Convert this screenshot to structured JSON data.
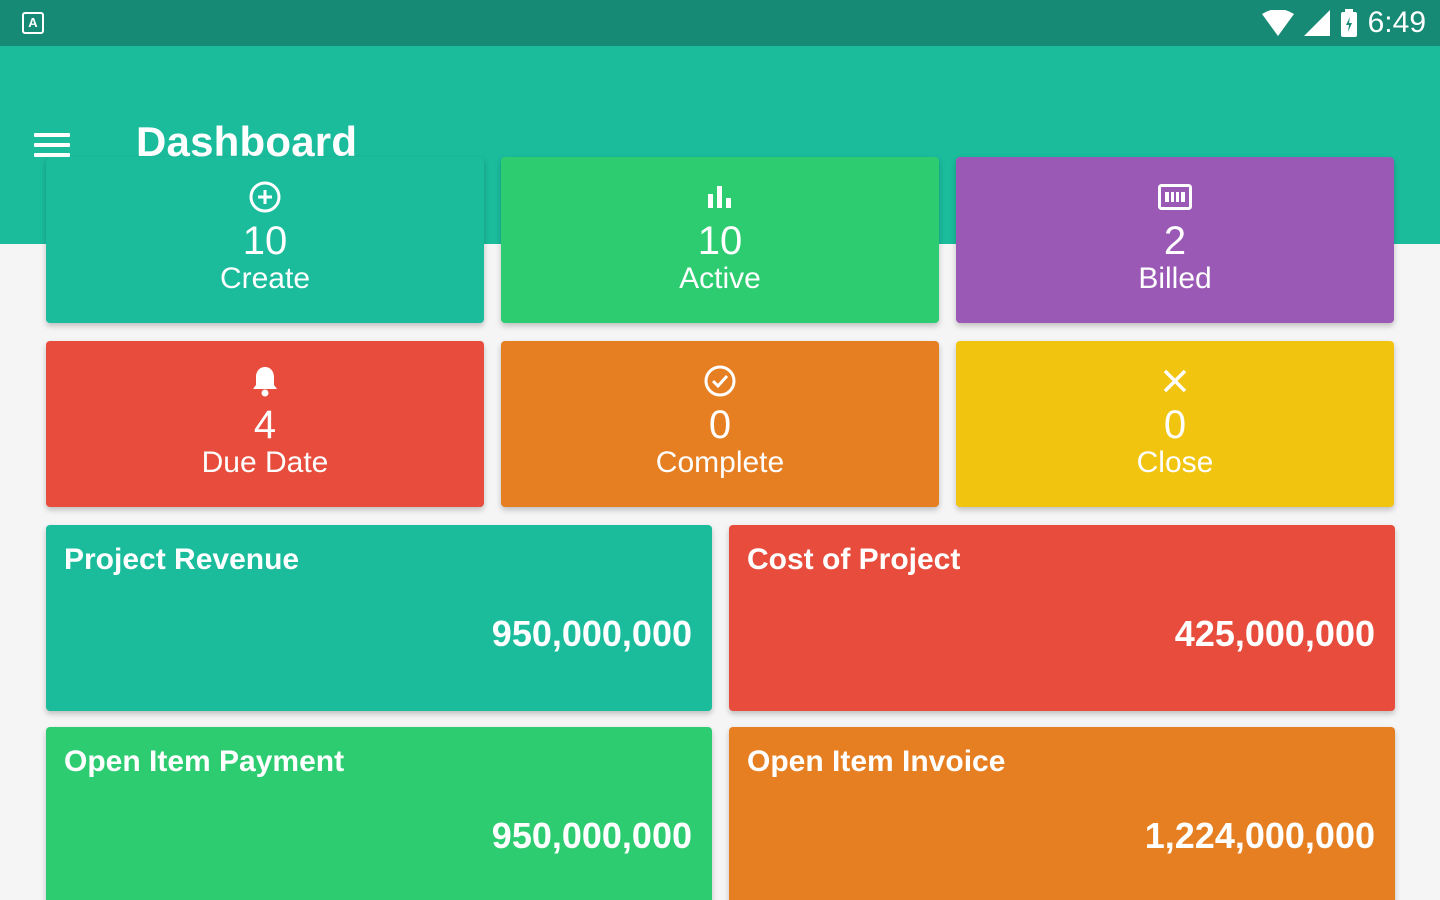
{
  "status_bar": {
    "time": "6:49",
    "notification_icon": "A"
  },
  "app_bar": {
    "title": "Dashboard",
    "menu_icon": "hamburger-menu-icon"
  },
  "tiles": [
    {
      "icon": "add-circle-icon",
      "value": "10",
      "label": "Create",
      "color": "#1abc9c"
    },
    {
      "icon": "bar-chart-icon",
      "value": "10",
      "label": "Active",
      "color": "#2ecc71"
    },
    {
      "icon": "billing-icon",
      "value": "2",
      "label": "Billed",
      "color": "#9b59b6"
    },
    {
      "icon": "bell-icon",
      "value": "4",
      "label": "Due Date",
      "color": "#e74c3c"
    },
    {
      "icon": "check-circle-icon",
      "value": "0",
      "label": "Complete",
      "color": "#e67e22"
    },
    {
      "icon": "close-icon",
      "value": "0",
      "label": "Close",
      "color": "#f1c40f"
    }
  ],
  "summaries": [
    {
      "title": "Project Revenue",
      "value": "950,000,000",
      "color": "#1abc9c"
    },
    {
      "title": "Cost of Project",
      "value": "425,000,000",
      "color": "#e74c3c"
    },
    {
      "title": "Open Item Payment",
      "value": "950,000,000",
      "color": "#2ecc71"
    },
    {
      "title": "Open Item Invoice",
      "value": "1,224,000,000",
      "color": "#e67e22"
    }
  ]
}
